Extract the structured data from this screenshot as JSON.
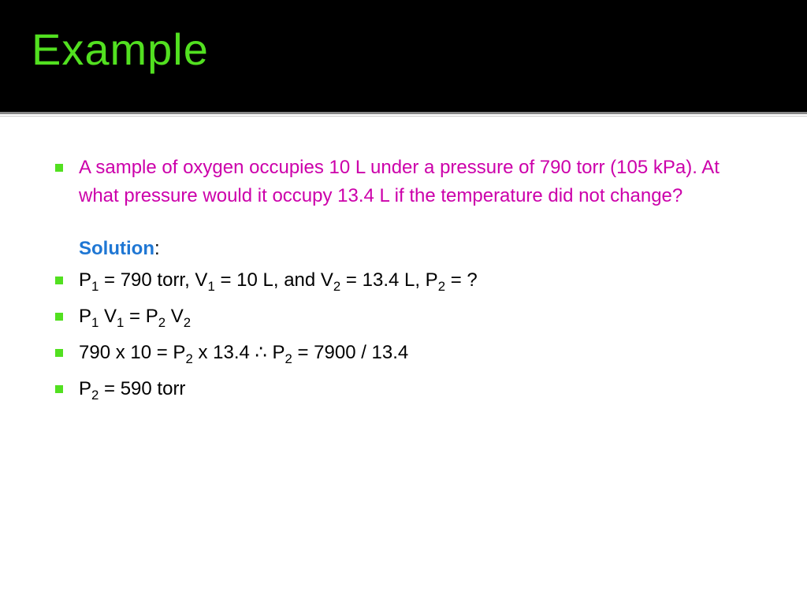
{
  "colors": {
    "title": "#52e020",
    "bullet": "#52e020",
    "question_text": "#cc00aa",
    "solution_label": "#1f77d4",
    "body_text": "#000000"
  },
  "title": "Example",
  "question": "A sample of oxygen occupies 10 L under a pressure of 790 torr (105 kPa). At what pressure would it occupy 13.4 L if the temperature did not change?",
  "solution_label": "Solution",
  "solution_lines": [
    {
      "html": "P<sub>1</sub> = 790 torr, V<sub>1</sub> = 10 L, and V<sub>2</sub> = 13.4 L, P<sub>2</sub> = ?"
    },
    {
      "html": "P<sub>1</sub> V<sub>1</sub> = P<sub>2</sub> V<sub>2</sub>"
    },
    {
      "html": "790 x 10 = P<sub>2</sub> x 13.4 <span class='therefore'>&there4;</span>  P<sub>2</sub> = 7900 / 13.4"
    },
    {
      "html": "P<sub>2</sub> = 590 torr"
    }
  ]
}
